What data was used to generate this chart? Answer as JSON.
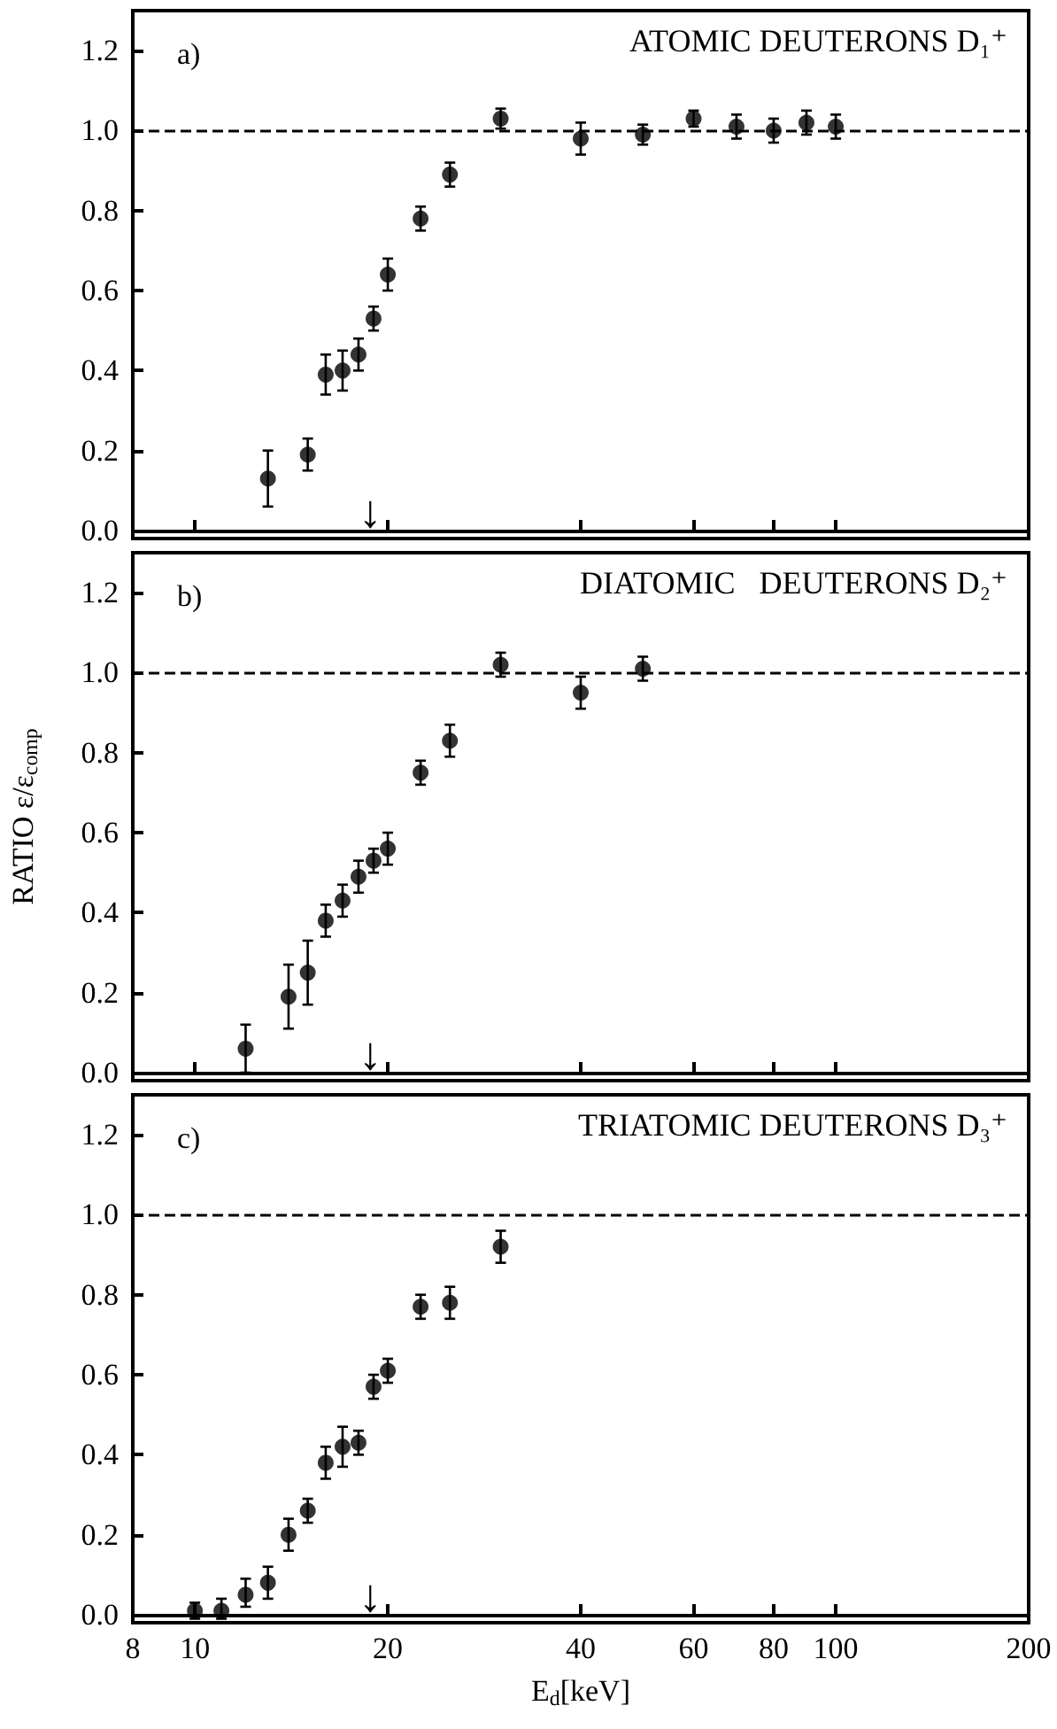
{
  "chart_data": [
    {
      "type": "scatter",
      "title": "ATOMIC DEUTERONS D₁⁺",
      "annotations": [
        "a)",
        "↓"
      ],
      "x": [
        13,
        15,
        16,
        17,
        18,
        19,
        20,
        22.5,
        25,
        30,
        40,
        50,
        60,
        70,
        80,
        90,
        100
      ],
      "series": [
        {
          "color": "#000000",
          "values": [
            0.13,
            0.19,
            0.39,
            0.4,
            0.44,
            0.53,
            0.64,
            0.78,
            0.89,
            1.03,
            0.98,
            0.99,
            1.03,
            1.01,
            1.0,
            1.02,
            1.01
          ],
          "errors": [
            [
              0.06,
              0.2
            ],
            [
              0.15,
              0.23
            ],
            [
              0.34,
              0.44
            ],
            [
              0.35,
              0.45
            ],
            [
              0.4,
              0.48
            ],
            [
              0.5,
              0.56
            ],
            [
              0.6,
              0.68
            ],
            [
              0.75,
              0.81
            ],
            [
              0.86,
              0.92
            ],
            [
              1.005,
              1.055
            ],
            [
              0.94,
              1.02
            ],
            [
              0.965,
              1.015
            ],
            [
              1.01,
              1.05
            ],
            [
              0.98,
              1.04
            ],
            [
              0.97,
              1.03
            ],
            [
              0.99,
              1.05
            ],
            [
              0.98,
              1.04
            ]
          ]
        }
      ],
      "xlim": [
        8,
        200
      ],
      "xticks": [
        8,
        10,
        20,
        40,
        60,
        80,
        100,
        200
      ],
      "log": "x",
      "ylim": [
        -0.02,
        1.3
      ],
      "yticks": [
        {
          "value": 0,
          "label": "0.0"
        },
        {
          "value": 0.2,
          "label": "0.2"
        },
        {
          "value": 0.4,
          "label": "0.4"
        },
        {
          "value": 0.6,
          "label": "0.6"
        },
        {
          "value": 0.8,
          "label": "0.8"
        },
        {
          "value": 1,
          "label": "1.0"
        },
        {
          "value": 1.2,
          "label": "1.2"
        }
      ],
      "ref_lines": [
        {
          "axis": "y",
          "value": 1,
          "color": "#000000",
          "line_style": "dashed"
        }
      ],
      "marker": "circle",
      "grid": false,
      "tick_labels": "y"
    },
    {
      "type": "scatter",
      "title": "DIATOMIC   DEUTERONS D₂⁺",
      "ylabel": "RATIO ε/ε$_{comp}$",
      "annotations": [
        "b)",
        "↓"
      ],
      "x": [
        12,
        14,
        15,
        16,
        17,
        18,
        19,
        20,
        22.5,
        25,
        30,
        40,
        50
      ],
      "series": [
        {
          "color": "#000000",
          "values": [
            0.06,
            0.19,
            0.25,
            0.38,
            0.43,
            0.49,
            0.53,
            0.56,
            0.75,
            0.83,
            1.02,
            0.95,
            1.01
          ],
          "errors": [
            [
              0.0,
              0.12
            ],
            [
              0.11,
              0.27
            ],
            [
              0.17,
              0.33
            ],
            [
              0.34,
              0.42
            ],
            [
              0.39,
              0.47
            ],
            [
              0.45,
              0.53
            ],
            [
              0.5,
              0.56
            ],
            [
              0.52,
              0.6
            ],
            [
              0.72,
              0.78
            ],
            [
              0.79,
              0.87
            ],
            [
              0.99,
              1.05
            ],
            [
              0.91,
              0.99
            ],
            [
              0.98,
              1.04
            ]
          ]
        }
      ],
      "xlim": [
        8,
        200
      ],
      "xticks": [
        8,
        10,
        20,
        40,
        60,
        80,
        100,
        200
      ],
      "log": "x",
      "ylim": [
        -0.02,
        1.3
      ],
      "yticks": [
        {
          "value": 0,
          "label": "0.0"
        },
        {
          "value": 0.2,
          "label": "0.2"
        },
        {
          "value": 0.4,
          "label": "0.4"
        },
        {
          "value": 0.6,
          "label": "0.6"
        },
        {
          "value": 0.8,
          "label": "0.8"
        },
        {
          "value": 1,
          "label": "1.0"
        },
        {
          "value": 1.2,
          "label": "1.2"
        }
      ],
      "ref_lines": [
        {
          "axis": "y",
          "value": 1,
          "color": "#000000",
          "line_style": "dashed"
        }
      ],
      "marker": "circle",
      "grid": false,
      "tick_labels": "y"
    },
    {
      "type": "scatter",
      "title": "TRIATOMIC DEUTERONS D₃⁺",
      "xlabel": "E$_{d}$[keV]",
      "annotations": [
        "c)",
        "↓"
      ],
      "x": [
        10,
        11,
        12,
        13,
        14,
        15,
        16,
        17,
        18,
        19,
        20,
        22.5,
        25,
        30
      ],
      "series": [
        {
          "color": "#000000",
          "values": [
            0.01,
            0.01,
            0.05,
            0.08,
            0.2,
            0.26,
            0.38,
            0.42,
            0.43,
            0.57,
            0.61,
            0.77,
            0.78,
            0.92
          ],
          "errors": [
            [
              -0.01,
              0.03
            ],
            [
              -0.01,
              0.04
            ],
            [
              0.02,
              0.09
            ],
            [
              0.04,
              0.12
            ],
            [
              0.16,
              0.24
            ],
            [
              0.23,
              0.29
            ],
            [
              0.34,
              0.42
            ],
            [
              0.37,
              0.47
            ],
            [
              0.4,
              0.46
            ],
            [
              0.54,
              0.6
            ],
            [
              0.58,
              0.64
            ],
            [
              0.74,
              0.8
            ],
            [
              0.74,
              0.82
            ],
            [
              0.88,
              0.96
            ]
          ]
        }
      ],
      "xlim": [
        8,
        200
      ],
      "xticks": [
        8,
        10,
        20,
        40,
        60,
        80,
        100,
        200
      ],
      "log": "x",
      "ylim": [
        -0.02,
        1.3
      ],
      "yticks": [
        {
          "value": 0,
          "label": "0.0"
        },
        {
          "value": 0.2,
          "label": "0.2"
        },
        {
          "value": 0.4,
          "label": "0.4"
        },
        {
          "value": 0.6,
          "label": "0.6"
        },
        {
          "value": 0.8,
          "label": "0.8"
        },
        {
          "value": 1,
          "label": "1.0"
        },
        {
          "value": 1.2,
          "label": "1.2"
        }
      ],
      "ref_lines": [
        {
          "axis": "y",
          "value": 1,
          "color": "#000000",
          "line_style": "dashed"
        }
      ],
      "marker": "circle",
      "grid": false
    }
  ]
}
